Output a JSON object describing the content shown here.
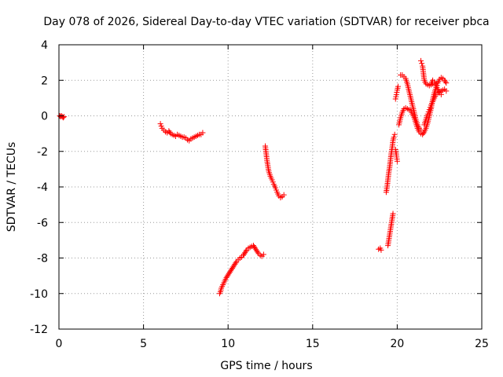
{
  "chart_data": {
    "type": "scatter",
    "title": "Day 078 of 2026, Sidereal Day-to-day VTEC variation (SDTVAR) for receiver pbca",
    "xlabel": "GPS time / hours",
    "ylabel": "SDTVAR / TECUs",
    "xlim": [
      0,
      25
    ],
    "ylim": [
      -12,
      4
    ],
    "xticks": [
      0,
      5,
      10,
      15,
      20,
      25
    ],
    "yticks": [
      -12,
      -10,
      -8,
      -6,
      -4,
      -2,
      0,
      2,
      4
    ],
    "grid": true,
    "marker": "+",
    "colors": {
      "series": "#ff0000",
      "axis": "#000000",
      "grid": "#9a9a9a"
    },
    "series": [
      {
        "name": "SDTVAR",
        "segments": [
          [
            [
              0.05,
              0.0
            ],
            [
              0.1,
              -0.05
            ],
            [
              0.15,
              0.0
            ],
            [
              0.2,
              -0.05
            ],
            [
              0.25,
              -0.1
            ],
            [
              0.3,
              -0.05
            ]
          ],
          [
            [
              6.0,
              -0.45
            ],
            [
              6.1,
              -0.7
            ],
            [
              6.2,
              -0.8
            ],
            [
              6.3,
              -0.9
            ],
            [
              6.4,
              -0.95
            ],
            [
              6.5,
              -0.85
            ],
            [
              6.6,
              -1.0
            ],
            [
              6.7,
              -1.05
            ],
            [
              6.8,
              -1.1
            ],
            [
              6.9,
              -1.15
            ],
            [
              7.0,
              -1.05
            ],
            [
              7.1,
              -1.1
            ],
            [
              7.2,
              -1.15
            ],
            [
              7.3,
              -1.2
            ],
            [
              7.4,
              -1.2
            ],
            [
              7.5,
              -1.25
            ],
            [
              7.6,
              -1.35
            ],
            [
              7.7,
              -1.4
            ],
            [
              7.8,
              -1.3
            ],
            [
              7.9,
              -1.25
            ],
            [
              8.0,
              -1.2
            ],
            [
              8.1,
              -1.15
            ],
            [
              8.2,
              -1.1
            ],
            [
              8.3,
              -1.05
            ],
            [
              8.4,
              -1.05
            ],
            [
              8.5,
              -0.95
            ]
          ],
          [
            [
              9.5,
              -10.0
            ],
            [
              9.55,
              -9.9
            ],
            [
              9.6,
              -9.7
            ],
            [
              9.7,
              -9.5
            ],
            [
              9.8,
              -9.3
            ],
            [
              9.9,
              -9.1
            ],
            [
              10.0,
              -8.95
            ],
            [
              10.1,
              -8.8
            ],
            [
              10.2,
              -8.65
            ],
            [
              10.3,
              -8.5
            ],
            [
              10.4,
              -8.35
            ],
            [
              10.5,
              -8.2
            ],
            [
              10.6,
              -8.1
            ],
            [
              10.7,
              -8.0
            ],
            [
              10.8,
              -7.95
            ],
            [
              10.9,
              -7.85
            ],
            [
              11.0,
              -7.7
            ],
            [
              11.1,
              -7.55
            ],
            [
              11.2,
              -7.45
            ],
            [
              11.3,
              -7.4
            ],
            [
              11.4,
              -7.35
            ],
            [
              11.5,
              -7.3
            ],
            [
              11.6,
              -7.45
            ],
            [
              11.7,
              -7.6
            ],
            [
              11.8,
              -7.75
            ],
            [
              11.9,
              -7.85
            ],
            [
              12.0,
              -7.9
            ],
            [
              12.1,
              -7.8
            ]
          ],
          [
            [
              12.2,
              -1.7
            ],
            [
              12.25,
              -2.1
            ],
            [
              12.3,
              -2.5
            ],
            [
              12.35,
              -2.8
            ],
            [
              12.4,
              -3.1
            ],
            [
              12.5,
              -3.4
            ],
            [
              12.6,
              -3.6
            ],
            [
              12.7,
              -3.85
            ],
            [
              12.8,
              -4.05
            ],
            [
              12.9,
              -4.3
            ],
            [
              13.0,
              -4.5
            ],
            [
              13.1,
              -4.6
            ],
            [
              13.2,
              -4.55
            ],
            [
              13.3,
              -4.45
            ]
          ],
          [
            [
              18.9,
              -7.5
            ],
            [
              19.0,
              -7.45
            ],
            [
              19.05,
              -7.55
            ]
          ],
          [
            [
              19.35,
              -4.3
            ],
            [
              19.4,
              -4.0
            ],
            [
              19.45,
              -3.6
            ],
            [
              19.5,
              -3.2
            ],
            [
              19.55,
              -2.9
            ],
            [
              19.6,
              -2.5
            ],
            [
              19.65,
              -2.1
            ],
            [
              19.7,
              -1.8
            ],
            [
              19.75,
              -1.4
            ],
            [
              19.8,
              -1.2
            ],
            [
              19.85,
              -1.05
            ]
          ],
          [
            [
              19.45,
              -7.3
            ],
            [
              19.5,
              -7.0
            ],
            [
              19.55,
              -6.7
            ],
            [
              19.6,
              -6.4
            ],
            [
              19.65,
              -6.1
            ],
            [
              19.7,
              -5.8
            ],
            [
              19.75,
              -5.5
            ]
          ],
          [
            [
              19.9,
              -1.9
            ],
            [
              19.95,
              -2.2
            ],
            [
              20.0,
              -2.55
            ]
          ],
          [
            [
              19.9,
              0.95
            ],
            [
              19.95,
              1.2
            ],
            [
              20.0,
              1.45
            ],
            [
              20.05,
              1.65
            ]
          ],
          [
            [
              20.1,
              -0.5
            ],
            [
              20.2,
              -0.1
            ],
            [
              20.3,
              0.2
            ],
            [
              20.4,
              0.4
            ],
            [
              20.5,
              0.45
            ],
            [
              20.6,
              0.4
            ],
            [
              20.7,
              0.35
            ],
            [
              20.8,
              0.3
            ],
            [
              20.9,
              0.1
            ],
            [
              21.0,
              -0.1
            ],
            [
              21.1,
              -0.4
            ],
            [
              21.2,
              -0.7
            ],
            [
              21.3,
              -0.9
            ],
            [
              21.4,
              -1.0
            ],
            [
              21.5,
              -1.05
            ],
            [
              21.6,
              -0.9
            ],
            [
              21.7,
              -0.7
            ],
            [
              21.8,
              -0.4
            ],
            [
              21.9,
              0.0
            ],
            [
              22.0,
              0.4
            ],
            [
              22.1,
              0.9
            ],
            [
              22.2,
              1.3
            ],
            [
              22.3,
              1.6
            ],
            [
              22.4,
              1.85
            ],
            [
              22.5,
              2.05
            ],
            [
              22.6,
              2.15
            ],
            [
              22.7,
              2.1
            ],
            [
              22.8,
              2.0
            ],
            [
              22.9,
              1.85
            ]
          ],
          [
            [
              20.2,
              2.3
            ],
            [
              20.3,
              2.3
            ],
            [
              20.4,
              2.2
            ],
            [
              20.5,
              2.1
            ],
            [
              20.6,
              1.8
            ],
            [
              20.7,
              1.4
            ],
            [
              20.8,
              1.0
            ],
            [
              20.9,
              0.6
            ],
            [
              21.0,
              0.2
            ],
            [
              21.1,
              -0.2
            ],
            [
              21.2,
              -0.5
            ],
            [
              21.3,
              -0.7
            ],
            [
              21.4,
              -0.8
            ]
          ],
          [
            [
              21.4,
              3.1
            ],
            [
              21.45,
              2.95
            ],
            [
              21.5,
              2.8
            ],
            [
              21.55,
              2.4
            ],
            [
              21.6,
              2.0
            ],
            [
              21.7,
              1.8
            ],
            [
              21.8,
              1.75
            ],
            [
              21.9,
              1.7
            ],
            [
              22.0,
              1.75
            ],
            [
              22.1,
              1.8
            ]
          ],
          [
            [
              21.6,
              -0.5
            ],
            [
              21.7,
              -0.2
            ],
            [
              21.8,
              0.1
            ],
            [
              21.9,
              0.35
            ],
            [
              22.0,
              0.6
            ],
            [
              22.1,
              0.8
            ],
            [
              22.2,
              1.0
            ],
            [
              22.3,
              1.2
            ],
            [
              22.4,
              1.3
            ],
            [
              22.5,
              1.35
            ],
            [
              22.6,
              1.4
            ],
            [
              22.7,
              1.45
            ],
            [
              22.8,
              1.5
            ],
            [
              22.9,
              1.4
            ]
          ],
          [
            [
              22.0,
              1.8
            ],
            [
              22.1,
              2.0
            ],
            [
              22.2,
              1.9
            ],
            [
              22.3,
              1.7
            ],
            [
              22.4,
              1.5
            ],
            [
              22.5,
              1.3
            ],
            [
              22.6,
              1.2
            ]
          ]
        ]
      }
    ]
  }
}
